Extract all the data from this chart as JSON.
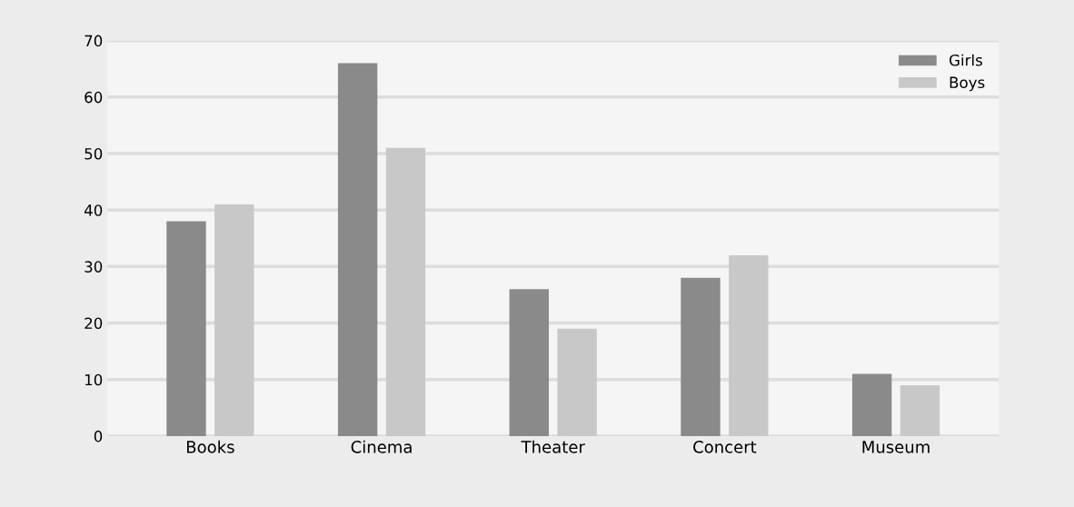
{
  "chart_data": {
    "type": "bar",
    "categories": [
      "Books",
      "Cinema",
      "Theater",
      "Concert",
      "Museum"
    ],
    "series": [
      {
        "name": "Girls",
        "color": "#8a8a8a",
        "values": [
          38,
          66,
          26,
          28,
          11
        ]
      },
      {
        "name": "Boys",
        "color": "#c8c8c8",
        "values": [
          41,
          51,
          19,
          32,
          9
        ]
      }
    ],
    "ylim": [
      0,
      70
    ],
    "yticks": [
      0,
      10,
      20,
      30,
      40,
      50,
      60,
      70
    ],
    "grid": "y",
    "legend": "top right"
  }
}
